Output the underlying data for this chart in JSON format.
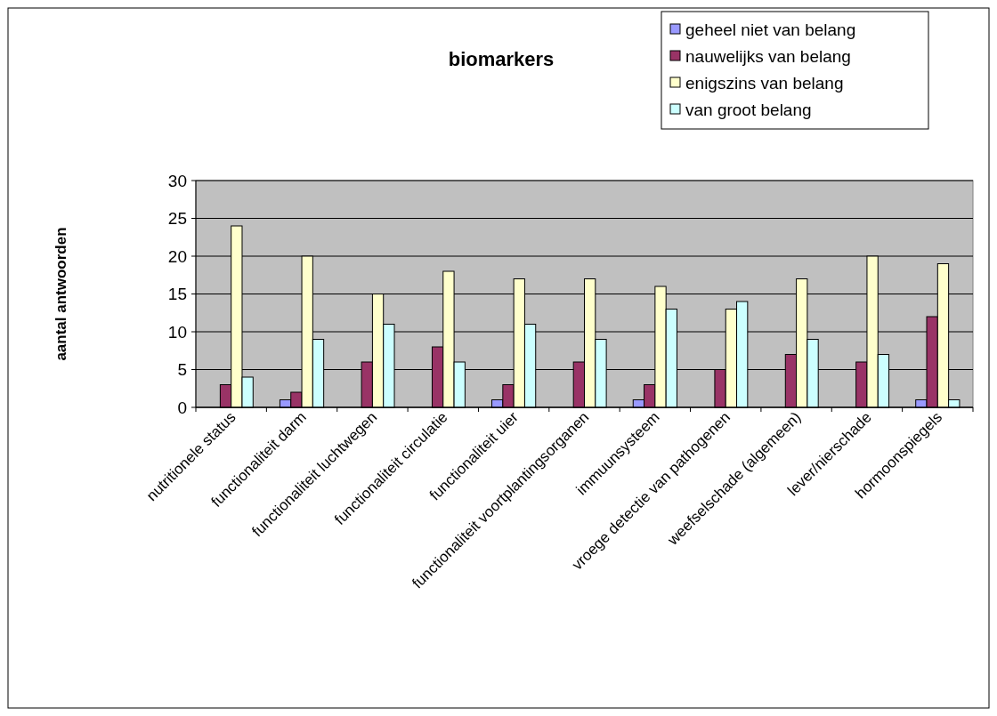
{
  "chart_data": {
    "type": "bar",
    "title": "biomarkers",
    "ylabel": "aantal antwoorden",
    "categories": [
      "nutritionele status",
      "functionaliteit darm",
      "functionaliteit luchtwegen",
      "functionaliteit circulatie",
      "functionaliteit uier",
      "functionaliteit voortplantingsorganen",
      "immuunsysteem",
      "vroege detectie van pathogenen",
      "weefselschade (algemeen)",
      "lever/nierschade",
      "hormoonspiegels"
    ],
    "series": [
      {
        "name": "geheel niet van belang",
        "color": "#9999ff",
        "values": [
          0,
          1,
          0,
          0,
          1,
          0,
          1,
          0,
          0,
          0,
          1
        ]
      },
      {
        "name": "nauwelijks van belang",
        "color": "#993366",
        "values": [
          3,
          2,
          6,
          8,
          3,
          6,
          3,
          5,
          7,
          6,
          12
        ]
      },
      {
        "name": "enigszins van belang",
        "color": "#ffffcc",
        "values": [
          24,
          20,
          15,
          18,
          17,
          17,
          16,
          13,
          17,
          20,
          19
        ]
      },
      {
        "name": "van groot belang",
        "color": "#ccffff",
        "values": [
          4,
          9,
          11,
          6,
          11,
          9,
          13,
          14,
          9,
          7,
          1
        ]
      }
    ],
    "ylim": [
      0,
      30
    ],
    "yticks": [
      0,
      5,
      10,
      15,
      20,
      25,
      30
    ],
    "grid": "y",
    "legend": "top right"
  }
}
